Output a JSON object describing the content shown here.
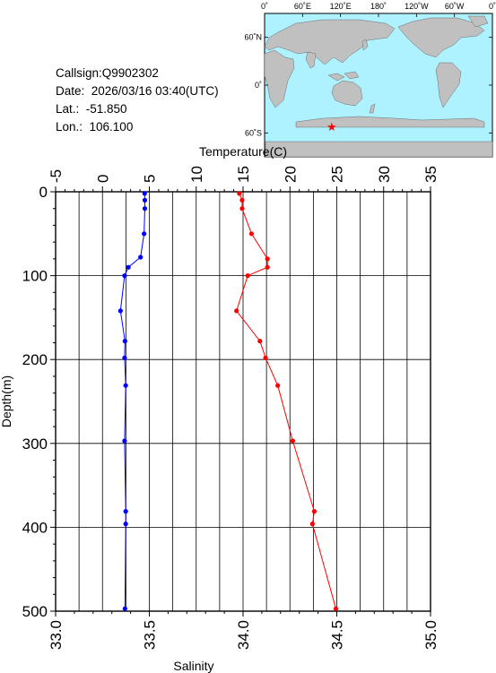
{
  "info": {
    "callsign": "Callsign:Q9902302",
    "date": "Date:  2026/03/16 03:40(UTC)",
    "lat": "Lat.:  -51.850",
    "lon": "Lon.:  106.100"
  },
  "map": {
    "lon_labels": [
      "0˚",
      "60˚E",
      "120˚E",
      "180˚",
      "120˚W",
      "60˚W",
      "0˚"
    ],
    "lat_labels": [
      "60˚N",
      "0˚",
      "60˚S"
    ],
    "marker": {
      "lon": 106.1,
      "lat": -51.85
    },
    "colors": {
      "ocean": "#aef1ff",
      "land": "#c0c0c0",
      "marker": "#ff0000"
    }
  },
  "chart_data": {
    "type": "line",
    "ylabel": "Depth(m)",
    "ylim": [
      0,
      500
    ],
    "y_ticks": [
      0,
      100,
      200,
      300,
      400,
      500
    ],
    "temperature_axis": {
      "label": "Temperature(C)",
      "range": [
        -5,
        35
      ],
      "ticks": [
        -5,
        0,
        5,
        10,
        15,
        20,
        25,
        30,
        35
      ]
    },
    "salinity_axis": {
      "label": "Salinity",
      "range": [
        33.0,
        35.0
      ],
      "ticks": [
        "33.0",
        "33.5",
        "34.0",
        "34.5",
        "35.0"
      ]
    },
    "series": [
      {
        "axis": "temperature",
        "color": "#ff0000",
        "points": [
          {
            "depth": 2,
            "value": 14.6
          },
          {
            "depth": 10,
            "value": 14.9
          },
          {
            "depth": 20,
            "value": 14.9
          },
          {
            "depth": 50,
            "value": 15.9
          },
          {
            "depth": 80,
            "value": 17.6
          },
          {
            "depth": 90,
            "value": 17.6
          },
          {
            "depth": 100,
            "value": 15.5
          },
          {
            "depth": 142,
            "value": 14.3
          },
          {
            "depth": 178,
            "value": 16.8
          },
          {
            "depth": 198,
            "value": 17.4
          },
          {
            "depth": 231,
            "value": 18.7
          },
          {
            "depth": 297,
            "value": 20.3
          },
          {
            "depth": 381,
            "value": 22.6
          },
          {
            "depth": 396,
            "value": 22.4
          },
          {
            "depth": 497,
            "value": 24.9
          }
        ]
      },
      {
        "axis": "salinity",
        "color": "#0000ff",
        "points": [
          {
            "depth": 2,
            "value": 33.475
          },
          {
            "depth": 10,
            "value": 33.476
          },
          {
            "depth": 20,
            "value": 33.476
          },
          {
            "depth": 50,
            "value": 33.472
          },
          {
            "depth": 78,
            "value": 33.453
          },
          {
            "depth": 90,
            "value": 33.388
          },
          {
            "depth": 100,
            "value": 33.368
          },
          {
            "depth": 142,
            "value": 33.346
          },
          {
            "depth": 178,
            "value": 33.37
          },
          {
            "depth": 198,
            "value": 33.368
          },
          {
            "depth": 231,
            "value": 33.374
          },
          {
            "depth": 297,
            "value": 33.368
          },
          {
            "depth": 381,
            "value": 33.374
          },
          {
            "depth": 396,
            "value": 33.374
          },
          {
            "depth": 497,
            "value": 33.37
          }
        ]
      }
    ]
  }
}
